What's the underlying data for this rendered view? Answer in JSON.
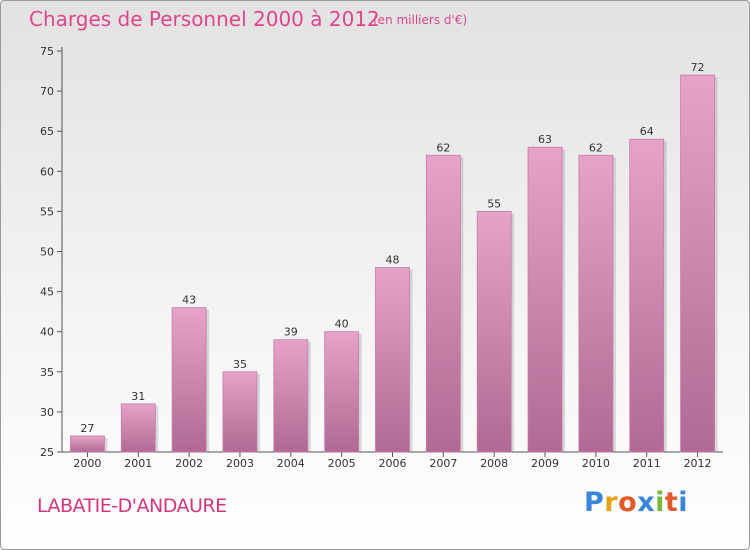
{
  "title": "Charges de Personnel 2000 à 2012",
  "unit_note": "(en milliers d'€)",
  "town": "LABATIE-D'ANDAURE",
  "brand": {
    "letters": [
      "P",
      "r",
      "o",
      "x",
      "i",
      "t",
      "i"
    ],
    "colors": [
      "#3a86d6",
      "#e8a21a",
      "#e05a2a",
      "#3a86d6",
      "#7ab83a",
      "#e05a2a",
      "#3a86d6"
    ]
  },
  "colors": {
    "bar_top": "#e6a3c9",
    "bar_bottom": "#b06a93",
    "bar_edge": "#c77aa5",
    "title": "#e0458c"
  },
  "chart_data": {
    "type": "bar",
    "categories": [
      "2000",
      "2001",
      "2002",
      "2003",
      "2004",
      "2005",
      "2006",
      "2007",
      "2008",
      "2009",
      "2010",
      "2011",
      "2012"
    ],
    "values": [
      27,
      31,
      43,
      35,
      39,
      40,
      48,
      62,
      55,
      63,
      62,
      64,
      72
    ],
    "title": "Charges de Personnel 2000 à 2012",
    "ylabel": "",
    "xlabel": "",
    "ylim": [
      25,
      75
    ],
    "yticks": [
      25,
      30,
      35,
      40,
      45,
      50,
      55,
      60,
      65,
      70,
      75
    ],
    "grid": false,
    "data_labels": true
  }
}
